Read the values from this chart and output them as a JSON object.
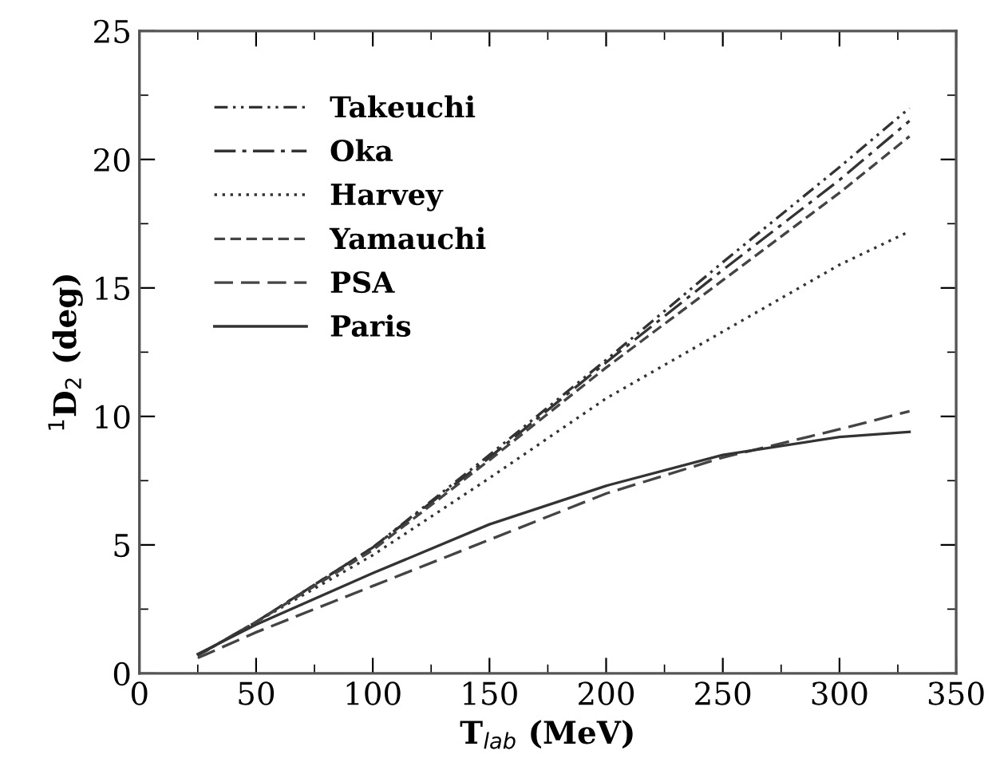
{
  "chart_data": {
    "type": "line",
    "xlabel": "T$_{lab}$ (MeV)",
    "ylabel": "$^{1}$D$_{2}$ (deg)",
    "xlim": [
      0,
      350
    ],
    "ylim": [
      0,
      25
    ],
    "xticks": [
      0,
      50,
      100,
      150,
      200,
      250,
      300,
      350
    ],
    "yticks": [
      0,
      5,
      10,
      15,
      20,
      25
    ],
    "x": [
      25,
      50,
      100,
      150,
      200,
      250,
      300,
      330
    ],
    "legend": "top left",
    "grid": false,
    "marker": "none",
    "series": [
      {
        "name": "Takeuchi",
        "color": "#333333",
        "line_style": "dashdotdot",
        "values": [
          0.7,
          2.0,
          4.9,
          8.5,
          12.2,
          16.0,
          19.7,
          22.0
        ]
      },
      {
        "name": "Oka",
        "color": "#333333",
        "line_style": "dashdot",
        "values": [
          0.7,
          2.0,
          4.9,
          8.4,
          12.1,
          15.7,
          19.2,
          21.5
        ]
      },
      {
        "name": "Harvey",
        "color": "#333333",
        "line_style": "dotted",
        "values": [
          0.7,
          2.0,
          4.6,
          7.6,
          10.7,
          13.3,
          15.9,
          17.2
        ]
      },
      {
        "name": "Yamauchi",
        "color": "#444444",
        "line_style": "dashed",
        "values": [
          0.7,
          2.0,
          4.8,
          8.3,
          11.9,
          15.3,
          18.7,
          20.9
        ]
      },
      {
        "name": "PSA",
        "color": "#444444",
        "line_style": "longdashed",
        "values": [
          0.6,
          1.6,
          3.4,
          5.2,
          7.0,
          8.4,
          9.5,
          10.2
        ]
      },
      {
        "name": "Paris",
        "color": "#333333",
        "line_style": "solid",
        "values": [
          0.75,
          1.9,
          3.9,
          5.8,
          7.3,
          8.5,
          9.2,
          9.4
        ]
      }
    ]
  }
}
